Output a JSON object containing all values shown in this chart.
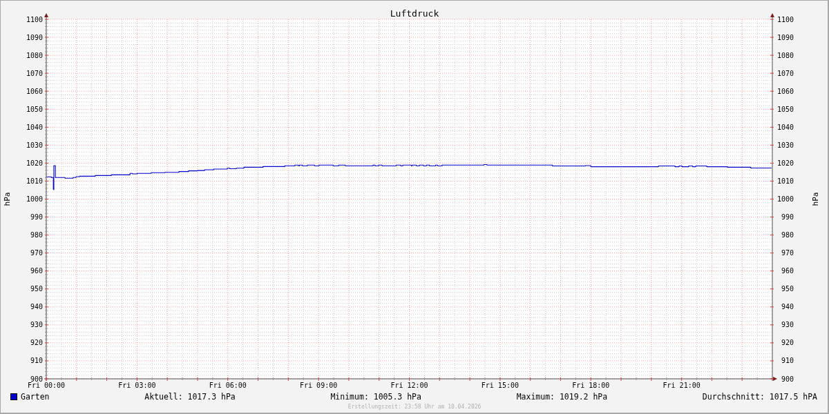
{
  "chart_data": {
    "type": "step",
    "title": "Luftdruck",
    "ylabel": "hPa",
    "y2label": "hPa",
    "x": [
      "2026-04-10T00:00",
      "2026-04-10T00:10",
      "2026-04-10T00:14",
      "2026-04-10T00:15",
      "2026-04-10T00:18",
      "2026-04-10T00:37",
      "2026-04-10T00:53",
      "2026-04-10T00:59",
      "2026-04-10T01:06",
      "2026-04-10T01:37",
      "2026-04-10T02:09",
      "2026-04-10T02:46",
      "2026-04-10T02:51",
      "2026-04-10T03:00",
      "2026-04-10T03:28",
      "2026-04-10T03:55",
      "2026-04-10T04:23",
      "2026-04-10T04:42",
      "2026-04-10T05:00",
      "2026-04-10T05:14",
      "2026-04-10T05:32",
      "2026-04-10T05:59",
      "2026-04-10T06:04",
      "2026-04-10T06:17",
      "2026-04-10T06:32",
      "2026-04-10T07:10",
      "2026-04-10T07:53",
      "2026-04-10T08:13",
      "2026-04-10T08:20",
      "2026-04-10T08:22",
      "2026-04-10T08:28",
      "2026-04-10T08:38",
      "2026-04-10T08:52",
      "2026-04-10T09:01",
      "2026-04-10T09:29",
      "2026-04-10T09:40",
      "2026-04-10T09:53",
      "2026-04-10T10:48",
      "2026-04-10T10:52",
      "2026-04-10T10:59",
      "2026-04-10T11:06",
      "2026-04-10T11:34",
      "2026-04-10T11:43",
      "2026-04-10T11:47",
      "2026-04-10T12:04",
      "2026-04-10T12:06",
      "2026-04-10T12:14",
      "2026-04-10T12:20",
      "2026-04-10T12:28",
      "2026-04-10T12:34",
      "2026-04-10T12:40",
      "2026-04-10T12:52",
      "2026-04-10T12:56",
      "2026-04-10T13:05",
      "2026-04-10T14:28",
      "2026-04-10T14:34",
      "2026-04-10T16:44",
      "2026-04-10T17:49",
      "2026-04-10T18:00",
      "2026-04-10T20:14",
      "2026-04-10T20:47",
      "2026-04-10T20:55",
      "2026-04-10T21:01",
      "2026-04-10T21:14",
      "2026-04-10T21:22",
      "2026-04-10T21:28",
      "2026-04-10T21:50",
      "2026-04-10T22:31",
      "2026-04-10T23:17",
      "2026-04-10T23:58"
    ],
    "series": [
      {
        "name": "Garten",
        "color": "#0000cc",
        "values": [
          1012.4,
          1012.0,
          1005.3,
          1018.6,
          1012.0,
          1011.6,
          1012.0,
          1012.5,
          1012.7,
          1013.1,
          1013.5,
          1014.3,
          1014.0,
          1014.3,
          1014.7,
          1014.9,
          1015.3,
          1015.7,
          1015.9,
          1016.3,
          1016.7,
          1017.2,
          1016.9,
          1017.2,
          1017.7,
          1018.1,
          1018.5,
          1018.9,
          1018.5,
          1018.9,
          1018.5,
          1018.9,
          1018.5,
          1018.9,
          1018.5,
          1018.9,
          1018.5,
          1018.9,
          1018.5,
          1018.9,
          1018.5,
          1018.9,
          1018.5,
          1018.9,
          1018.5,
          1018.9,
          1018.5,
          1018.9,
          1018.5,
          1018.9,
          1018.5,
          1018.9,
          1018.5,
          1018.9,
          1019.2,
          1018.9,
          1018.4,
          1018.6,
          1018.0,
          1018.4,
          1018.0,
          1018.4,
          1018.0,
          1018.4,
          1018.0,
          1018.4,
          1018.0,
          1017.7,
          1017.3,
          1017.3
        ]
      }
    ],
    "xlim": [
      "2026-04-10T00:00",
      "2026-04-11T00:00"
    ],
    "xticks": [
      {
        "value": "2026-04-10T00:00",
        "label": "Fri 00:00"
      },
      {
        "value": "2026-04-10T00:30",
        "label": null
      },
      {
        "value": "2026-04-10T01:00",
        "label": null
      },
      {
        "value": "2026-04-10T01:30",
        "label": null
      },
      {
        "value": "2026-04-10T02:00",
        "label": null
      },
      {
        "value": "2026-04-10T02:30",
        "label": null
      },
      {
        "value": "2026-04-10T03:00",
        "label": "Fri 03:00"
      },
      {
        "value": "2026-04-10T03:30",
        "label": null
      },
      {
        "value": "2026-04-10T04:00",
        "label": null
      },
      {
        "value": "2026-04-10T04:30",
        "label": null
      },
      {
        "value": "2026-04-10T05:00",
        "label": null
      },
      {
        "value": "2026-04-10T05:30",
        "label": null
      },
      {
        "value": "2026-04-10T06:00",
        "label": "Fri 06:00"
      },
      {
        "value": "2026-04-10T06:30",
        "label": null
      },
      {
        "value": "2026-04-10T07:00",
        "label": null
      },
      {
        "value": "2026-04-10T07:30",
        "label": null
      },
      {
        "value": "2026-04-10T08:00",
        "label": null
      },
      {
        "value": "2026-04-10T08:30",
        "label": null
      },
      {
        "value": "2026-04-10T09:00",
        "label": "Fri 09:00"
      },
      {
        "value": "2026-04-10T09:30",
        "label": null
      },
      {
        "value": "2026-04-10T10:00",
        "label": null
      },
      {
        "value": "2026-04-10T10:30",
        "label": null
      },
      {
        "value": "2026-04-10T11:00",
        "label": null
      },
      {
        "value": "2026-04-10T11:30",
        "label": null
      },
      {
        "value": "2026-04-10T12:00",
        "label": "Fri 12:00"
      },
      {
        "value": "2026-04-10T12:30",
        "label": null
      },
      {
        "value": "2026-04-10T13:00",
        "label": null
      },
      {
        "value": "2026-04-10T13:30",
        "label": null
      },
      {
        "value": "2026-04-10T14:00",
        "label": null
      },
      {
        "value": "2026-04-10T14:30",
        "label": null
      },
      {
        "value": "2026-04-10T15:00",
        "label": "Fri 15:00"
      },
      {
        "value": "2026-04-10T15:30",
        "label": null
      },
      {
        "value": "2026-04-10T16:00",
        "label": null
      },
      {
        "value": "2026-04-10T16:30",
        "label": null
      },
      {
        "value": "2026-04-10T17:00",
        "label": null
      },
      {
        "value": "2026-04-10T17:30",
        "label": null
      },
      {
        "value": "2026-04-10T18:00",
        "label": "Fri 18:00"
      },
      {
        "value": "2026-04-10T18:30",
        "label": null
      },
      {
        "value": "2026-04-10T19:00",
        "label": null
      },
      {
        "value": "2026-04-10T19:30",
        "label": null
      },
      {
        "value": "2026-04-10T20:00",
        "label": null
      },
      {
        "value": "2026-04-10T20:30",
        "label": null
      },
      {
        "value": "2026-04-10T21:00",
        "label": "Fri 21:00"
      },
      {
        "value": "2026-04-10T21:30",
        "label": null
      },
      {
        "value": "2026-04-10T22:00",
        "label": null
      },
      {
        "value": "2026-04-10T22:30",
        "label": null
      },
      {
        "value": "2026-04-10T23:00",
        "label": null
      },
      {
        "value": "2026-04-10T23:30",
        "label": null
      }
    ],
    "ylim": [
      900,
      1100
    ],
    "yticks": [
      900,
      {
        "value": 902,
        "label": null
      },
      {
        "value": 904,
        "label": null
      },
      {
        "value": 906,
        "label": null
      },
      {
        "value": 908,
        "label": null
      },
      910,
      {
        "value": 912,
        "label": null
      },
      {
        "value": 914,
        "label": null
      },
      {
        "value": 916,
        "label": null
      },
      {
        "value": 918,
        "label": null
      },
      920,
      {
        "value": 922,
        "label": null
      },
      {
        "value": 924,
        "label": null
      },
      {
        "value": 926,
        "label": null
      },
      {
        "value": 928,
        "label": null
      },
      930,
      {
        "value": 932,
        "label": null
      },
      {
        "value": 934,
        "label": null
      },
      {
        "value": 936,
        "label": null
      },
      {
        "value": 938,
        "label": null
      },
      940,
      {
        "value": 942,
        "label": null
      },
      {
        "value": 944,
        "label": null
      },
      {
        "value": 946,
        "label": null
      },
      {
        "value": 948,
        "label": null
      },
      950,
      {
        "value": 952,
        "label": null
      },
      {
        "value": 954,
        "label": null
      },
      {
        "value": 956,
        "label": null
      },
      {
        "value": 958,
        "label": null
      },
      960,
      {
        "value": 962,
        "label": null
      },
      {
        "value": 964,
        "label": null
      },
      {
        "value": 966,
        "label": null
      },
      {
        "value": 968,
        "label": null
      },
      970,
      {
        "value": 972,
        "label": null
      },
      {
        "value": 974,
        "label": null
      },
      {
        "value": 976,
        "label": null
      },
      {
        "value": 978,
        "label": null
      },
      980,
      {
        "value": 982,
        "label": null
      },
      {
        "value": 984,
        "label": null
      },
      {
        "value": 986,
        "label": null
      },
      {
        "value": 988,
        "label": null
      },
      990,
      {
        "value": 992,
        "label": null
      },
      {
        "value": 994,
        "label": null
      },
      {
        "value": 996,
        "label": null
      },
      {
        "value": 998,
        "label": null
      },
      1000,
      {
        "value": 1002,
        "label": null
      },
      {
        "value": 1004,
        "label": null
      },
      {
        "value": 1006,
        "label": null
      },
      {
        "value": 1008,
        "label": null
      },
      1010,
      {
        "value": 1012,
        "label": null
      },
      {
        "value": 1014,
        "label": null
      },
      {
        "value": 1016,
        "label": null
      },
      {
        "value": 1018,
        "label": null
      },
      1020,
      {
        "value": 1022,
        "label": null
      },
      {
        "value": 1024,
        "label": null
      },
      {
        "value": 1026,
        "label": null
      },
      {
        "value": 1028,
        "label": null
      },
      1030,
      {
        "value": 1032,
        "label": null
      },
      {
        "value": 1034,
        "label": null
      },
      {
        "value": 1036,
        "label": null
      },
      {
        "value": 1038,
        "label": null
      },
      1040,
      {
        "value": 1042,
        "label": null
      },
      {
        "value": 1044,
        "label": null
      },
      {
        "value": 1046,
        "label": null
      },
      {
        "value": 1048,
        "label": null
      },
      1050,
      {
        "value": 1052,
        "label": null
      },
      {
        "value": 1054,
        "label": null
      },
      {
        "value": 1056,
        "label": null
      },
      {
        "value": 1058,
        "label": null
      },
      1060,
      {
        "value": 1062,
        "label": null
      },
      {
        "value": 1064,
        "label": null
      },
      {
        "value": 1066,
        "label": null
      },
      {
        "value": 1068,
        "label": null
      },
      1070,
      {
        "value": 1072,
        "label": null
      },
      {
        "value": 1074,
        "label": null
      },
      {
        "value": 1076,
        "label": null
      },
      {
        "value": 1078,
        "label": null
      },
      1080,
      {
        "value": 1082,
        "label": null
      },
      {
        "value": 1084,
        "label": null
      },
      {
        "value": 1086,
        "label": null
      },
      {
        "value": 1088,
        "label": null
      },
      1090,
      {
        "value": 1092,
        "label": null
      },
      {
        "value": 1094,
        "label": null
      },
      {
        "value": 1096,
        "label": null
      },
      {
        "value": 1098,
        "label": null
      },
      1100
    ],
    "y2lim": [
      900,
      1100
    ],
    "y2ticks": [
      900,
      910,
      920,
      930,
      940,
      950,
      960,
      970,
      980,
      990,
      1000,
      1010,
      1020,
      1030,
      1040,
      1050,
      1060,
      1070,
      1080,
      1090,
      1100
    ],
    "grid": true,
    "legend": "bottom left",
    "annotations": [
      "Aktuell: 1017.3 hPa",
      "Minimum: 1005.3 hPa",
      "Maximum: 1019.2 hPa",
      "Durchschnitt: 1017.5 hPA",
      "Erstellungszeit: 23:58 Uhr am 10.04.2026"
    ]
  }
}
